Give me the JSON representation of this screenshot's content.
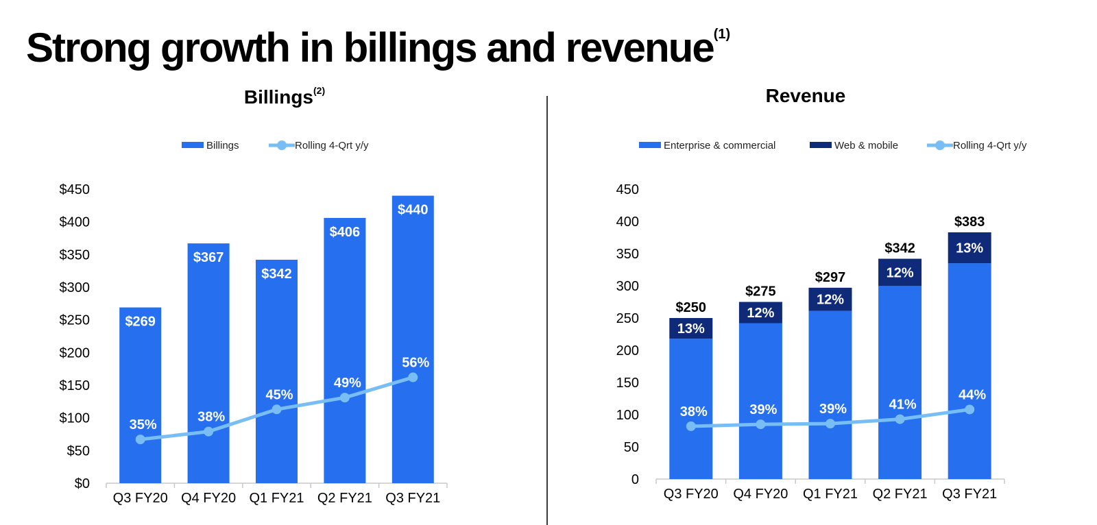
{
  "page": {
    "title": "Strong growth in billings and revenue",
    "title_note": "(1)"
  },
  "colors": {
    "bar_primary": "#2670f0",
    "bar_dark": "#0f2a78",
    "line": "#78bef5",
    "axis_text": "#000000",
    "divider": "#3a3a3a"
  },
  "chart_data": [
    {
      "type": "bar",
      "title": "Billings",
      "title_note": "(2)",
      "categories": [
        "Q3 FY20",
        "Q4 FY20",
        "Q1 FY21",
        "Q2 FY21",
        "Q3 FY21"
      ],
      "series": [
        {
          "name": "Billings",
          "type": "bar",
          "values": [
            269,
            367,
            342,
            406,
            440
          ],
          "labels": [
            "$269",
            "$367",
            "$342",
            "$406",
            "$440"
          ]
        },
        {
          "name": "Rolling 4-Qrt y/y",
          "type": "line",
          "values": [
            35,
            38,
            45,
            49,
            56
          ],
          "labels": [
            "35%",
            "38%",
            "45%",
            "49%",
            "56%"
          ],
          "plotted_at": [
            67,
            79,
            113,
            131,
            162
          ]
        }
      ],
      "ylim": [
        0,
        450
      ],
      "yticks": [
        0,
        50,
        100,
        150,
        200,
        250,
        300,
        350,
        400,
        450
      ],
      "ytick_labels": [
        "$0",
        "$50",
        "$100",
        "$150",
        "$200",
        "$250",
        "$300",
        "$350",
        "$400",
        "$450"
      ],
      "legend": "top-center",
      "grid": false
    },
    {
      "type": "bar",
      "stacked": true,
      "title": "Revenue",
      "categories": [
        "Q3 FY20",
        "Q4 FY20",
        "Q1 FY21",
        "Q2 FY21",
        "Q3 FY21"
      ],
      "totals": [
        250,
        275,
        297,
        342,
        383
      ],
      "total_labels": [
        "$250",
        "$275",
        "$297",
        "$342",
        "$383"
      ],
      "series": [
        {
          "name": "Enterprise & commercial",
          "type": "bar",
          "values": [
            218,
            242,
            261,
            300,
            335
          ]
        },
        {
          "name": "Web & mobile",
          "type": "bar",
          "values": [
            32,
            33,
            36,
            42,
            48
          ],
          "labels": [
            "13%",
            "12%",
            "12%",
            "12%",
            "13%"
          ]
        },
        {
          "name": "Rolling 4-Qrt y/y",
          "type": "line",
          "values": [
            38,
            39,
            39,
            41,
            44
          ],
          "labels": [
            "38%",
            "39%",
            "39%",
            "41%",
            "44%"
          ],
          "plotted_at": [
            82,
            85,
            86,
            93,
            108
          ]
        }
      ],
      "ylim": [
        0,
        450
      ],
      "yticks": [
        0,
        50,
        100,
        150,
        200,
        250,
        300,
        350,
        400,
        450
      ],
      "ytick_labels": [
        "0",
        "50",
        "100",
        "150",
        "200",
        "250",
        "300",
        "350",
        "400",
        "450"
      ],
      "legend": "top-center",
      "grid": false
    }
  ]
}
